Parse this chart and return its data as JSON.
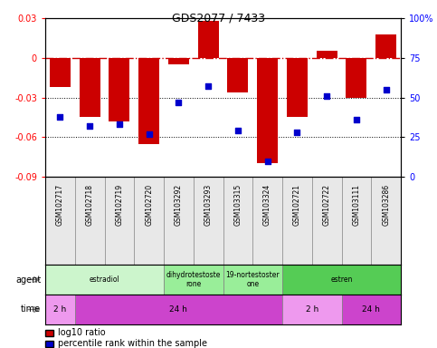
{
  "title": "GDS2077 / 7433",
  "samples": [
    "GSM102717",
    "GSM102718",
    "GSM102719",
    "GSM102720",
    "GSM103292",
    "GSM103293",
    "GSM103315",
    "GSM103324",
    "GSM102721",
    "GSM102722",
    "GSM103111",
    "GSM103286"
  ],
  "log10_ratio": [
    -0.022,
    -0.045,
    -0.048,
    -0.065,
    -0.005,
    0.028,
    -0.026,
    -0.08,
    -0.045,
    0.005,
    -0.03,
    0.018
  ],
  "percentile": [
    38,
    32,
    33,
    27,
    47,
    57,
    29,
    10,
    28,
    51,
    36,
    55
  ],
  "ylim_left": [
    -0.09,
    0.03
  ],
  "ylim_right": [
    0,
    100
  ],
  "yticks_left": [
    -0.09,
    -0.06,
    -0.03,
    0,
    0.03
  ],
  "yticks_right": [
    0,
    25,
    50,
    75,
    100
  ],
  "bar_color": "#cc0000",
  "dot_color": "#0000cc",
  "zero_line_color": "#cc0000",
  "grid_color": "#000000",
  "agent_groups": [
    {
      "label": "estradiol",
      "start": 0,
      "end": 4,
      "color": "#ccf5cc"
    },
    {
      "label": "dihydrotestoste\nrone",
      "start": 4,
      "end": 6,
      "color": "#99ee99"
    },
    {
      "label": "19-nortestoster\none",
      "start": 6,
      "end": 8,
      "color": "#99ee99"
    },
    {
      "label": "estren",
      "start": 8,
      "end": 12,
      "color": "#55cc55"
    }
  ],
  "time_groups": [
    {
      "label": "2 h",
      "start": 0,
      "end": 1,
      "color": "#ee99ee"
    },
    {
      "label": "24 h",
      "start": 1,
      "end": 8,
      "color": "#cc44cc"
    },
    {
      "label": "2 h",
      "start": 8,
      "end": 10,
      "color": "#ee99ee"
    },
    {
      "label": "24 h",
      "start": 10,
      "end": 12,
      "color": "#cc44cc"
    }
  ],
  "legend_bar_label": "log10 ratio",
  "legend_dot_label": "percentile rank within the sample",
  "agent_label": "agent",
  "time_label": "time"
}
